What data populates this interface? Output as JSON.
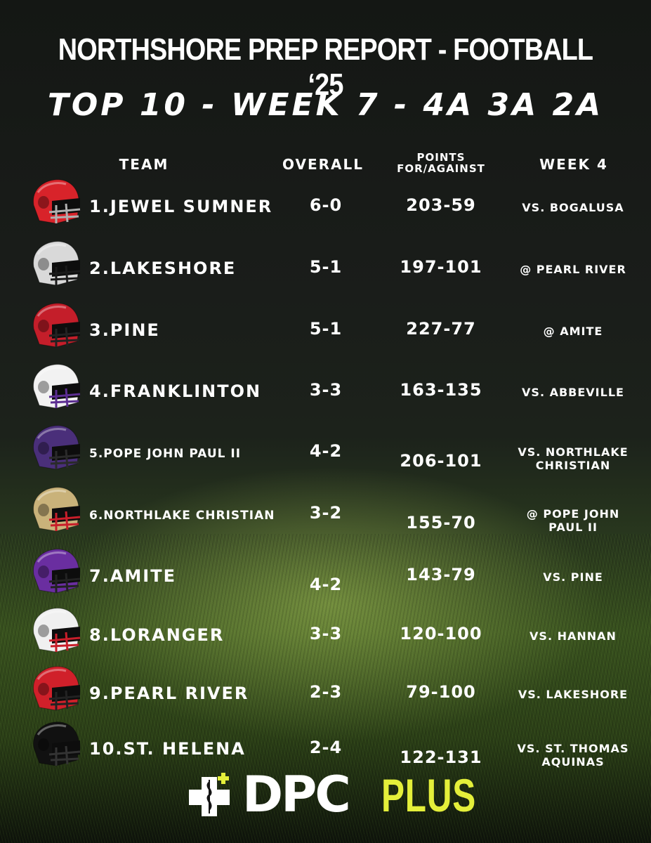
{
  "title": "NORTHSHORE PREP REPORT - FOOTBALL ‘25",
  "subtitle": "TOP 10 - WEEK 7 - 4A 3A 2A",
  "headers": {
    "team": "TEAM",
    "overall": "OVERALL",
    "points_line1": "POINTS",
    "points_line2": "FOR/AGAINST",
    "week": "WEEK 4"
  },
  "teams": [
    {
      "name": "1.JEWEL SUMNER",
      "record": "6-0",
      "points": "203-59",
      "opp1": "VS. BOGALUSA",
      "opp2": "",
      "helmet_color": "#d8232a",
      "mask_color": "#b0b0b0",
      "logo_icon": "s-logo-icon"
    },
    {
      "name": "2.LAKESHORE",
      "record": "5-1",
      "points": "197-101",
      "opp1": "@ PEARL RIVER",
      "opp2": "",
      "helmet_color": "#d9d9d9",
      "mask_color": "#1a1a1a",
      "logo_icon": "stripe-logo-icon"
    },
    {
      "name": "3.PINE",
      "record": "5-1",
      "points": "227-77",
      "opp1": "@ AMITE",
      "opp2": "",
      "helmet_color": "#c41e2a",
      "mask_color": "#222222",
      "logo_icon": "pine-logo-icon"
    },
    {
      "name": "4.FRANKLINTON",
      "record": "3-3",
      "points": "163-135",
      "opp1": "VS. ABBEVILLE",
      "opp2": "",
      "helmet_color": "#f2f2f2",
      "mask_color": "#5b2d91",
      "logo_icon": "f-logo-icon"
    },
    {
      "name": "5.POPE JOHN PAUL II",
      "record": "4-2",
      "points": "206-101",
      "opp1": "VS. NORTHLAKE",
      "opp2": "CHRISTIAN",
      "helmet_color": "#4a2f7a",
      "mask_color": "#2a2a2a",
      "logo_icon": "cross-logo-icon"
    },
    {
      "name": "6.NORTHLAKE CHRISTIAN",
      "record": "3-2",
      "points": "155-70",
      "opp1": "@ POPE JOHN",
      "opp2": "PAUL II",
      "helmet_color": "#c9b27a",
      "mask_color": "#c81e2a",
      "logo_icon": "wolf-logo-icon"
    },
    {
      "name": "7.AMITE",
      "record": "4-2",
      "points": "143-79",
      "opp1": "VS. PINE",
      "opp2": "",
      "helmet_color": "#6a2ea0",
      "mask_color": "#222222",
      "logo_icon": "warrior-logo-icon"
    },
    {
      "name": "8.LORANGER",
      "record": "3-3",
      "points": "120-100",
      "opp1": "VS. HANNAN",
      "opp2": "",
      "helmet_color": "#f0f0f0",
      "mask_color": "#c81e2a",
      "logo_icon": "wolf-logo-icon"
    },
    {
      "name": "9.PEARL RIVER",
      "record": "2-3",
      "points": "79-100",
      "opp1": "VS. LAKESHORE",
      "opp2": "",
      "helmet_color": "#d0202a",
      "mask_color": "#222222",
      "logo_icon": "rebel-logo-icon"
    },
    {
      "name": "10.ST. HELENA",
      "record": "2-4",
      "points": "122-131",
      "opp1": "VS. ST. THOMAS",
      "opp2": "AQUINAS",
      "helmet_color": "#111111",
      "mask_color": "#333333",
      "logo_icon": "h-logo-icon"
    }
  ],
  "sponsor": {
    "word1": "DPC",
    "word2": "PLUS",
    "accent_color": "#e4ef3a"
  }
}
